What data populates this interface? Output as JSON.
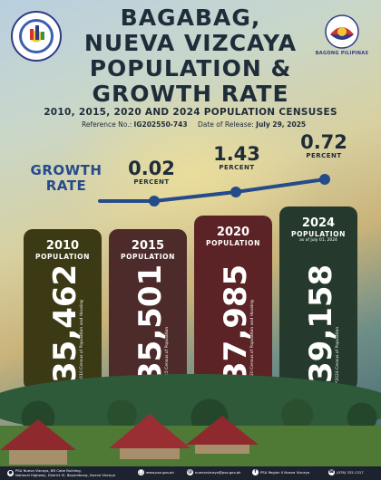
{
  "header": {
    "title_lines": [
      "BAGABAG,",
      "NUEVA VIZCAYA",
      "POPULATION &",
      "GROWTH RATE"
    ],
    "subtitle": "2010, 2015, 2020 AND 2024 POPULATION CENSUSES",
    "reference_label": "Reference No.:",
    "reference_no": "IG202550-743",
    "release_label": "Date of Release:",
    "release_date": "July 29, 2025",
    "logo_right_text": "BAGONG PILIPINAS"
  },
  "growth_rate": {
    "title_line1": "GROWTH",
    "title_line2": "RATE",
    "points": [
      {
        "value": "0.02",
        "label": "PERCENT"
      },
      {
        "value": "1.43",
        "label": "PERCENT"
      },
      {
        "value": "0.72",
        "label": "PERCENT"
      }
    ]
  },
  "cards": [
    {
      "year": "2010",
      "label": "POPULATION",
      "note": "",
      "value": "35,462",
      "source": "*2010 Census of Population and Housing",
      "color": "#3b3a14"
    },
    {
      "year": "2015",
      "label": "POPULATION",
      "note": "",
      "value": "35,501",
      "source": "*2015 Census of Population",
      "color": "#4e2b2b"
    },
    {
      "year": "2020",
      "label": "POPULATION",
      "note": "",
      "value": "37,985",
      "source": "*2020 Census of Population and Housing",
      "color": "#5b2325"
    },
    {
      "year": "2024",
      "label": "POPULATION",
      "note": "as of July 01, 2024",
      "value": "39,158",
      "source": "*2024 Census of Population",
      "color": "#253a2c"
    }
  ],
  "footer": {
    "address_line1": "PSA Nueva Vizcaya, BR Cabe Building,",
    "address_line2": "National Highway, District IV, Bayombong, Nueva Vizcaya",
    "website": "www.psa.gov.ph",
    "email": "nuevavizcaya@psa.gov.ph",
    "facebook": "PSA Region II Nueva Vizcaya",
    "phone": "(078) 332-1317"
  },
  "colors": {
    "growth_line": "#254b8a",
    "title_text": "#1f2d3a"
  }
}
